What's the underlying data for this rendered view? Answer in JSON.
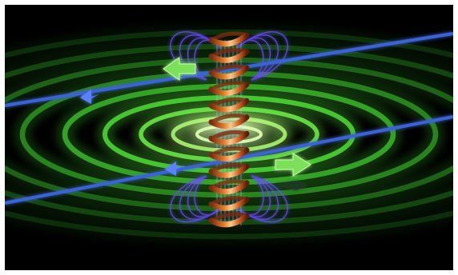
{
  "scene": {
    "subject": "solenoid-coil-with-magnetic-field",
    "colors": {
      "background": "#000000",
      "frame": "#ffffff",
      "field_rings": "#52e63a",
      "field_core": "#f4ffd0",
      "coil": "#e07a2a",
      "coil_highlight": "#ffc98a",
      "field_lines": "#6a4cff",
      "axis_lines": "#3b63d6",
      "arrow_green": "#7be05a",
      "arrow_blue": "#3b63d6"
    },
    "icons": [
      "compass-arrow-icon",
      "direction-arrow-icon"
    ]
  }
}
